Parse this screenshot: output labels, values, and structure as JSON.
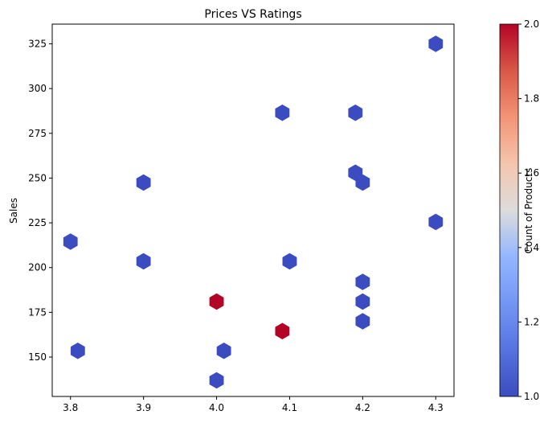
{
  "chart_data": {
    "type": "hexbin",
    "title": "Prices VS Ratings",
    "xlabel": "",
    "ylabel": "Sales",
    "xlim": [
      3.775,
      4.325
    ],
    "ylim": [
      128,
      336
    ],
    "xticks": [
      3.8,
      3.9,
      4.0,
      4.1,
      4.2,
      4.3
    ],
    "yticks": [
      150,
      175,
      200,
      225,
      250,
      275,
      300,
      325
    ],
    "grid": false,
    "colormap": "coolwarm",
    "colorbar": {
      "label": "Count of Products",
      "range": [
        1.0,
        2.0
      ],
      "ticks": [
        1.0,
        1.2,
        1.4,
        1.6,
        1.8,
        2.0
      ]
    },
    "colors": {
      "low": "#3b4cc0",
      "high": "#b40426"
    },
    "points": [
      {
        "x": 3.8,
        "y": 214.5,
        "count": 1
      },
      {
        "x": 3.81,
        "y": 153.5,
        "count": 1
      },
      {
        "x": 3.9,
        "y": 247.5,
        "count": 1
      },
      {
        "x": 3.9,
        "y": 203.5,
        "count": 1
      },
      {
        "x": 4.0,
        "y": 181.0,
        "count": 2
      },
      {
        "x": 4.0,
        "y": 137.0,
        "count": 1
      },
      {
        "x": 4.01,
        "y": 153.5,
        "count": 1
      },
      {
        "x": 4.09,
        "y": 286.5,
        "count": 1
      },
      {
        "x": 4.09,
        "y": 164.5,
        "count": 2
      },
      {
        "x": 4.1,
        "y": 203.5,
        "count": 1
      },
      {
        "x": 4.19,
        "y": 286.5,
        "count": 1
      },
      {
        "x": 4.19,
        "y": 253.0,
        "count": 1
      },
      {
        "x": 4.2,
        "y": 247.5,
        "count": 1
      },
      {
        "x": 4.2,
        "y": 192.0,
        "count": 1
      },
      {
        "x": 4.2,
        "y": 181.0,
        "count": 1
      },
      {
        "x": 4.2,
        "y": 170.0,
        "count": 1
      },
      {
        "x": 4.3,
        "y": 325.0,
        "count": 1
      },
      {
        "x": 4.3,
        "y": 225.5,
        "count": 1
      }
    ]
  }
}
